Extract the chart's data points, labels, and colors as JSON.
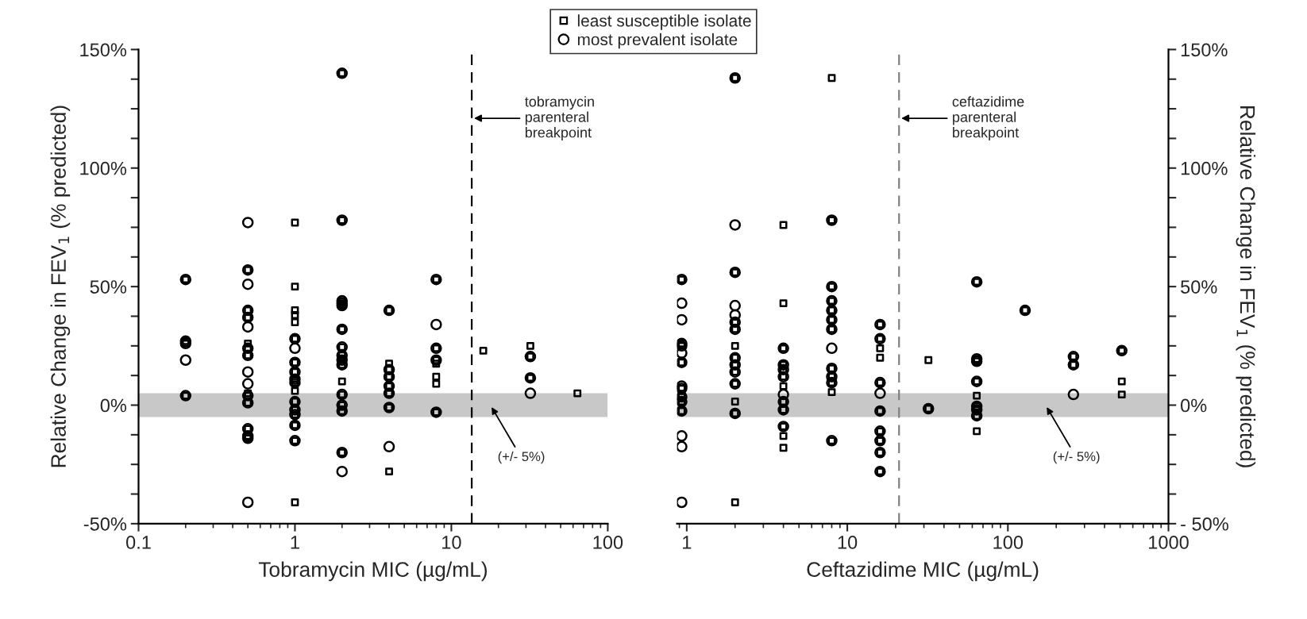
{
  "chart_data": [
    {
      "type": "scatter",
      "xlabel": "Tobramycin MIC (µg/mL)",
      "ylabel": "Relative Change in FEV$_{1}$ (% predicted)",
      "log": "x",
      "xlim": [
        0.1,
        100
      ],
      "xticks": [
        0.1,
        1,
        10,
        100
      ],
      "ylim": [
        -50,
        150
      ],
      "yticks": [
        {
          "value": -50,
          "label": "-50%"
        },
        {
          "value": -37.5,
          "label": null
        },
        {
          "value": -25,
          "label": null
        },
        {
          "value": -12.5,
          "label": null
        },
        {
          "value": 0,
          "label": "0%"
        },
        {
          "value": 12.5,
          "label": null
        },
        {
          "value": 25,
          "label": null
        },
        {
          "value": 37.5,
          "label": null
        },
        {
          "value": 50,
          "label": "50%"
        },
        {
          "value": 62.5,
          "label": null
        },
        {
          "value": 75,
          "label": null
        },
        {
          "value": 87.5,
          "label": null
        },
        {
          "value": 100,
          "label": "100%"
        },
        {
          "value": 112.5,
          "label": null
        },
        {
          "value": 125,
          "label": null
        },
        {
          "value": 137.5,
          "label": null
        },
        {
          "value": 150,
          "label": "150%"
        }
      ],
      "legend": "top",
      "ref_lines": [
        {
          "axis": "x",
          "value": 13.5,
          "label": "tobramycin\nparenteral\nbreakpoint",
          "color": "#000000",
          "line_style": "dashed"
        }
      ],
      "bands": [
        {
          "axis": "y",
          "from": -5,
          "to": 5,
          "label": "(+/- 5%)",
          "color": "#c8c8c8"
        }
      ],
      "series": [
        {
          "name": "least susceptible isolate",
          "color": "#000000",
          "marker": "square",
          "x": [
            0.2,
            0.2,
            0.2,
            0.2,
            0.5,
            0.5,
            0.5,
            0.5,
            0.5,
            0.5,
            0.5,
            0.5,
            0.5,
            0.5,
            0.5,
            0.5,
            1,
            1,
            1,
            1,
            1,
            1,
            1,
            1,
            1,
            1,
            1,
            1,
            1,
            1,
            1,
            1,
            1,
            2,
            2,
            2,
            2,
            2,
            2,
            2,
            2,
            2,
            2,
            2,
            2,
            2,
            2,
            2,
            4,
            4,
            4,
            4,
            4,
            4,
            4,
            4,
            8,
            8,
            8,
            8,
            8,
            8,
            8,
            16,
            32,
            32,
            32,
            64
          ],
          "values": [
            53,
            27,
            26,
            4,
            57,
            40,
            37,
            26,
            24,
            21,
            5,
            4,
            1,
            -10,
            -13,
            -14,
            77,
            50,
            40,
            38,
            35,
            28,
            18,
            14,
            11,
            9.5,
            6,
            1.5,
            -2,
            -4,
            -8.5,
            -15,
            -41,
            140,
            78,
            44,
            43,
            42,
            32,
            24.5,
            21,
            19,
            17,
            10,
            4.5,
            0,
            -2.5,
            -20,
            40,
            17.5,
            15,
            12,
            8,
            5,
            -1,
            -28,
            53,
            24,
            19,
            17.5,
            12,
            9,
            -3,
            23,
            25,
            20.5,
            11.5,
            5
          ]
        },
        {
          "name": "most prevalent isolate",
          "color": "#000000",
          "marker": "circle",
          "x": [
            0.2,
            0.2,
            0.2,
            0.2,
            0.2,
            0.5,
            0.5,
            0.5,
            0.5,
            0.5,
            0.5,
            0.5,
            0.5,
            0.5,
            0.5,
            0.5,
            0.5,
            0.5,
            0.5,
            0.5,
            0.5,
            1,
            1,
            1,
            1,
            1,
            1,
            1,
            1,
            1,
            1,
            1,
            2,
            2,
            2,
            2,
            2,
            2,
            2,
            2,
            2,
            2,
            2,
            2,
            2,
            2,
            2,
            4,
            4,
            4,
            4,
            4,
            4,
            4,
            8,
            8,
            8,
            8,
            8,
            32,
            32,
            32
          ],
          "values": [
            53,
            27,
            26,
            19,
            4,
            77,
            57,
            51,
            40,
            37,
            33,
            24,
            21,
            14,
            9,
            4,
            1,
            -10,
            -13,
            -14,
            -41,
            28,
            24,
            18,
            14,
            11,
            9.5,
            1.5,
            -2,
            -4,
            -8.5,
            -15,
            140,
            78,
            44,
            43,
            42,
            32,
            24.5,
            21,
            19,
            17,
            4.5,
            0,
            -2.5,
            -20,
            -28,
            40,
            15,
            12,
            8,
            5,
            -1,
            -17.5,
            53,
            34,
            24,
            19,
            -3,
            20.5,
            11.5,
            5
          ]
        }
      ]
    },
    {
      "type": "scatter",
      "xlabel": "Ceftazidime MIC (µg/mL)",
      "y2label": "Relative Change in FEV$_{1}$ (% predicted)",
      "log": "x",
      "xlim": [
        0.87,
        1000
      ],
      "xticks": [
        1,
        10,
        100,
        1000
      ],
      "y2lim": [
        -50,
        150
      ],
      "y2ticks": [
        {
          "value": -50,
          "label": "- 50%"
        },
        {
          "value": -37.5,
          "label": null
        },
        {
          "value": -25,
          "label": null
        },
        {
          "value": -12.5,
          "label": null
        },
        {
          "value": 0,
          "label": "0%"
        },
        {
          "value": 12.5,
          "label": null
        },
        {
          "value": 25,
          "label": null
        },
        {
          "value": 37.5,
          "label": null
        },
        {
          "value": 50,
          "label": "50%"
        },
        {
          "value": 62.5,
          "label": null
        },
        {
          "value": 75,
          "label": null
        },
        {
          "value": 87.5,
          "label": null
        },
        {
          "value": 100,
          "label": "100%"
        },
        {
          "value": 112.5,
          "label": null
        },
        {
          "value": 125,
          "label": null
        },
        {
          "value": 137.5,
          "label": null
        },
        {
          "value": 150,
          "label": "150%"
        }
      ],
      "ref_lines": [
        {
          "axis": "x",
          "value": 21,
          "label": "ceftazidime\nparenteral\nbreakpoint",
          "color": "#808080",
          "line_style": "dashed"
        }
      ],
      "bands": [
        {
          "axis": "y2",
          "from": -5,
          "to": 5,
          "label": "(+/- 5%)",
          "color": "#c8c8c8"
        }
      ],
      "series": [
        {
          "color": "#000000",
          "marker": "square",
          "axis": "y2",
          "x": [
            0.93,
            0.93,
            0.93,
            0.93,
            0.93,
            0.93,
            0.93,
            0.93,
            2,
            2,
            2,
            2,
            2,
            2,
            2,
            2,
            2,
            2,
            2,
            2,
            4,
            4,
            4,
            4,
            4,
            4,
            4,
            4,
            4,
            4,
            4,
            4,
            8,
            8,
            8,
            8,
            8,
            8,
            8,
            8,
            8,
            8,
            8,
            8,
            16,
            16,
            16,
            16,
            16,
            16,
            16,
            16,
            16,
            16,
            32,
            32,
            64,
            64,
            64,
            64,
            64,
            64,
            64,
            64,
            64,
            128,
            256,
            256,
            512,
            512,
            512
          ],
          "values": [
            53,
            26,
            25,
            18,
            7,
            3.5,
            1.5,
            -2.5,
            138,
            56,
            35,
            32,
            25,
            20,
            17,
            14,
            9,
            1.5,
            -3.5,
            -41,
            76,
            43,
            24,
            17,
            15,
            12,
            8,
            1.5,
            -2,
            -9,
            -13,
            -18,
            138,
            78,
            50,
            44,
            40,
            36,
            32,
            15.5,
            12,
            9.5,
            5.5,
            -15,
            34,
            28,
            24,
            20,
            9.5,
            -2.5,
            -11,
            -15,
            -20,
            -28,
            19,
            -1.5,
            52,
            19.5,
            18.5,
            10,
            4,
            -0.5,
            -2,
            -4.5,
            -11,
            40,
            20.5,
            17,
            23,
            10,
            4.5
          ]
        },
        {
          "color": "#000000",
          "marker": "circle",
          "axis": "y2",
          "x": [
            0.93,
            0.93,
            0.93,
            0.93,
            0.93,
            0.93,
            0.93,
            0.93,
            0.93,
            0.93,
            0.93,
            0.93,
            0.93,
            0.93,
            0.93,
            2,
            2,
            2,
            2,
            2,
            2,
            2,
            2,
            2,
            2,
            2,
            2,
            4,
            4,
            4,
            4,
            4,
            4,
            4,
            4,
            8,
            8,
            8,
            8,
            8,
            8,
            8,
            8,
            8,
            8,
            8,
            16,
            16,
            16,
            16,
            16,
            16,
            16,
            16,
            16,
            32,
            64,
            64,
            64,
            64,
            64,
            64,
            64,
            128,
            256,
            256,
            256,
            512
          ],
          "values": [
            53,
            43,
            36,
            26,
            25,
            22,
            18,
            8,
            7,
            3.5,
            1.5,
            -2.5,
            -13,
            -17.5,
            -41,
            138,
            76,
            56,
            42,
            38,
            35,
            32,
            20,
            17,
            14,
            9,
            -3.5,
            24,
            17,
            15,
            12,
            4.5,
            1.5,
            -2,
            -9,
            78,
            50,
            44,
            40,
            36,
            32,
            24,
            15.5,
            12,
            9.5,
            -15,
            34,
            28,
            9.5,
            5,
            -2.5,
            -11,
            -15,
            -20,
            -28,
            -1.5,
            52,
            19.5,
            18.5,
            10,
            -0.5,
            -2,
            -4.5,
            40,
            20.5,
            17,
            4.5,
            23
          ]
        }
      ]
    }
  ]
}
